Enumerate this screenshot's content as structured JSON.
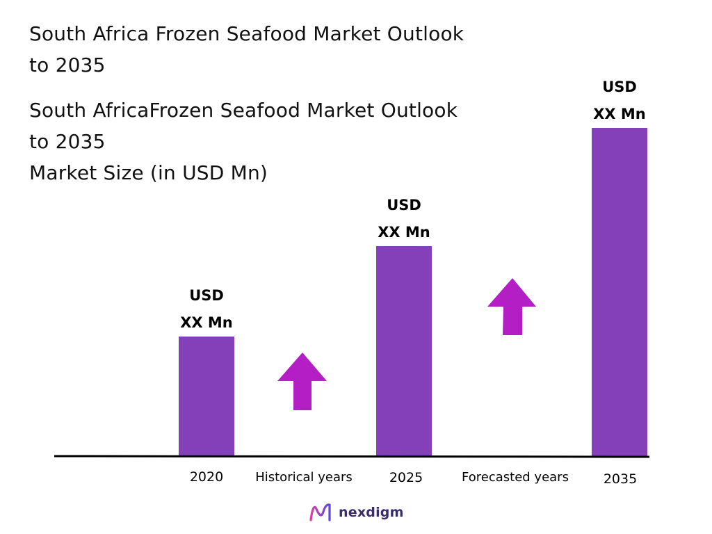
{
  "title": {
    "line1a": "South Africa Frozen Seafood Market Outlook",
    "line1b": "to 2035",
    "line2a": "South AfricaFrozen Seafood Market Outlook",
    "line2b": "to 2035",
    "line2c": "Market Size (in USD Mn)"
  },
  "chart_data": {
    "type": "bar",
    "categories": [
      "2020",
      "2025",
      "2035"
    ],
    "values": [
      172,
      302,
      472
    ],
    "value_labels": [
      [
        "USD",
        "XX Mn"
      ],
      [
        "USD",
        "XX Mn"
      ],
      [
        "USD",
        "XX Mn"
      ]
    ],
    "ylim": [
      0,
      500
    ],
    "grid": false,
    "periods": [
      "Historical years",
      "Forecasted years"
    ],
    "bar_color": "#8340b8",
    "arrow_color": "#b31fc4"
  },
  "logo": {
    "text": "nexdigm",
    "icon": "nexdigm-logo-icon"
  }
}
